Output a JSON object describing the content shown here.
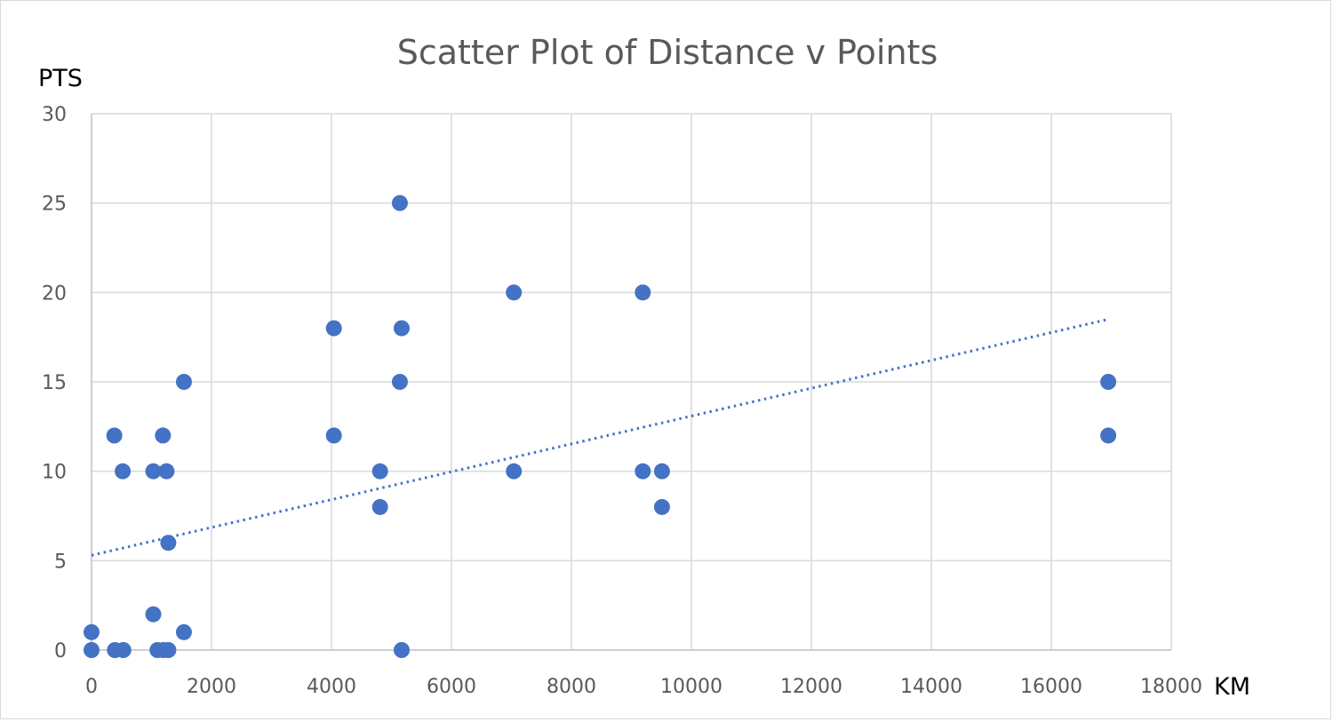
{
  "chart_data": {
    "type": "scatter",
    "title": "Scatter Plot of Distance v Points",
    "xlabel": "KM",
    "ylabel": "PTS",
    "xlim": [
      0,
      18000
    ],
    "ylim": [
      0,
      30
    ],
    "x_ticks": [
      0,
      2000,
      4000,
      6000,
      8000,
      10000,
      12000,
      14000,
      16000,
      18000
    ],
    "y_ticks": [
      0,
      5,
      10,
      15,
      20,
      25,
      30
    ],
    "grid": true,
    "legend": "none",
    "marker_color": "#4472c4",
    "trendline": {
      "type": "linear",
      "style": "dotted",
      "x": [
        0,
        16950
      ],
      "y": [
        5.3,
        18.5
      ]
    },
    "points": [
      {
        "x": 0,
        "y": 1
      },
      {
        "x": 0,
        "y": 0
      },
      {
        "x": 380,
        "y": 12
      },
      {
        "x": 390,
        "y": 0
      },
      {
        "x": 520,
        "y": 10
      },
      {
        "x": 530,
        "y": 0
      },
      {
        "x": 1030,
        "y": 10
      },
      {
        "x": 1030,
        "y": 2
      },
      {
        "x": 1100,
        "y": 0
      },
      {
        "x": 1190,
        "y": 12
      },
      {
        "x": 1200,
        "y": 0
      },
      {
        "x": 1250,
        "y": 10
      },
      {
        "x": 1280,
        "y": 6
      },
      {
        "x": 1280,
        "y": 0
      },
      {
        "x": 1540,
        "y": 15
      },
      {
        "x": 1540,
        "y": 1
      },
      {
        "x": 4040,
        "y": 18
      },
      {
        "x": 4040,
        "y": 12
      },
      {
        "x": 4810,
        "y": 10
      },
      {
        "x": 4810,
        "y": 8
      },
      {
        "x": 5140,
        "y": 25
      },
      {
        "x": 5140,
        "y": 15
      },
      {
        "x": 5170,
        "y": 18
      },
      {
        "x": 5170,
        "y": 0
      },
      {
        "x": 7040,
        "y": 20
      },
      {
        "x": 7040,
        "y": 10
      },
      {
        "x": 9190,
        "y": 20
      },
      {
        "x": 9190,
        "y": 10
      },
      {
        "x": 9510,
        "y": 10
      },
      {
        "x": 9510,
        "y": 8
      },
      {
        "x": 16950,
        "y": 15
      },
      {
        "x": 16950,
        "y": 12
      }
    ]
  }
}
